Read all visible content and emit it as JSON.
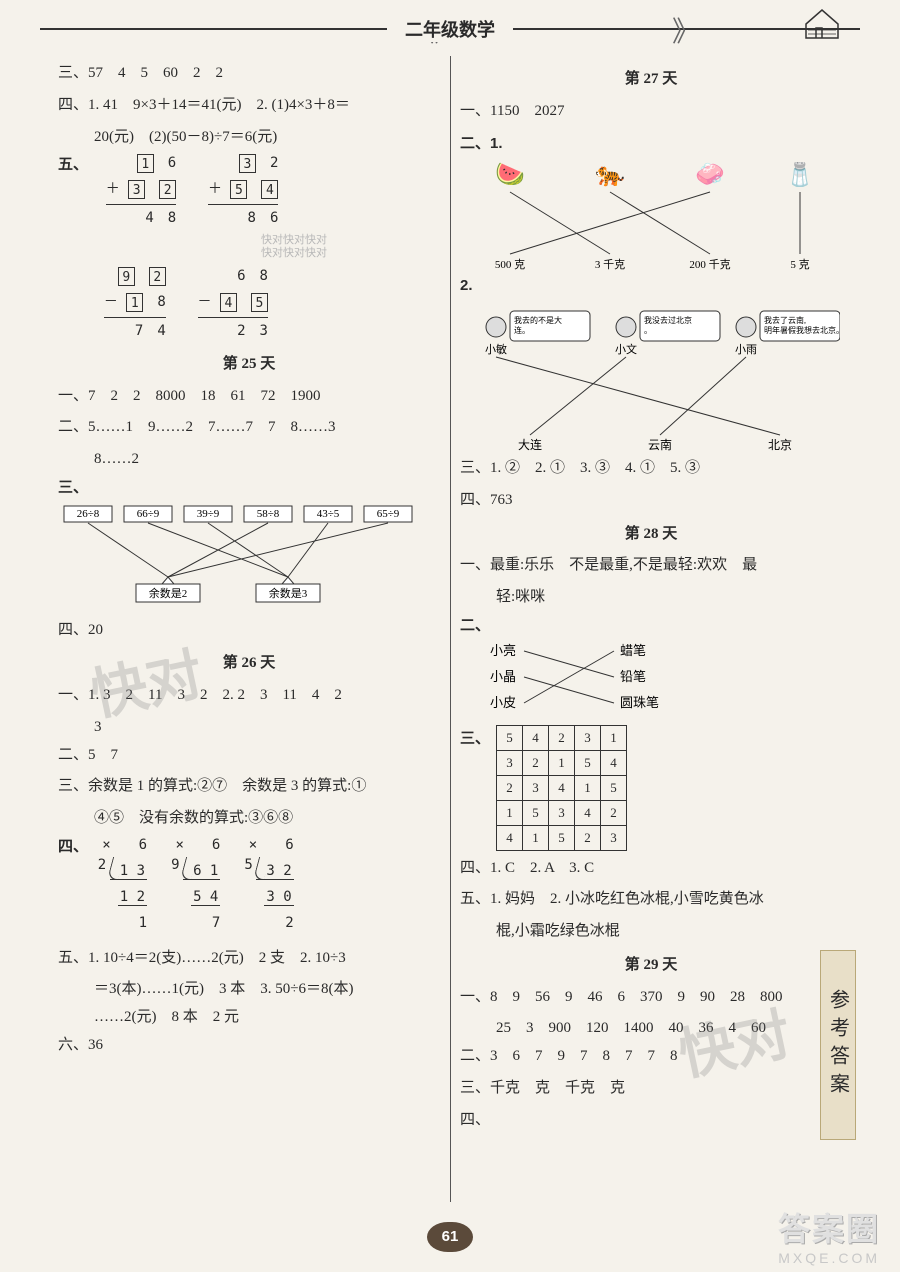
{
  "header": {
    "title": "二年级数学",
    "page_number": "61",
    "side_tab": "参考答案"
  },
  "watermarks": {
    "small": "快对快对快对\n快对快对快对",
    "brand_big": "答案圈",
    "brand_small": "MXQE.COM"
  },
  "left": {
    "pre": {
      "san": "三、57　4　5　60　2　2",
      "si_line1": "四、1. 41　9×3＋14＝41(元)　2. (1)4×3＋8＝",
      "si_line2": "20(元)　(2)(50－8)÷7＝6(元)",
      "wu_label": "五、",
      "box_add1": {
        "a": [
          "1",
          "6"
        ],
        "b": [
          "3",
          "2"
        ],
        "sum": "4　8",
        "op": "＋"
      },
      "box_add2": {
        "a": [
          "3",
          "2"
        ],
        "b": [
          "5",
          "4"
        ],
        "sum": "8　6",
        "op": "＋"
      },
      "box_sub1": {
        "a": [
          "9",
          "2"
        ],
        "b": [
          "1",
          "8"
        ],
        "sum": "7　4",
        "op": "－"
      },
      "box_sub2": {
        "a": [
          "6",
          "8"
        ],
        "b": [
          "4",
          "5"
        ],
        "sum": "2　3",
        "op": "－"
      }
    },
    "day25": {
      "title": "第 25 天",
      "yi": "一、7　2　2　8000　18　61　72　1900",
      "er_line1": "二、5……1　9……2　7……7　7　8……3",
      "er_line2": "8……2",
      "san_label": "三、",
      "match": {
        "tops": [
          "26÷8",
          "66÷9",
          "39÷9",
          "58÷8",
          "43÷5",
          "65÷9"
        ],
        "dests": [
          "余数是2",
          "余数是3"
        ],
        "edges": [
          [
            0,
            0
          ],
          [
            1,
            1
          ],
          [
            2,
            1
          ],
          [
            3,
            0
          ],
          [
            4,
            1
          ],
          [
            5,
            0
          ]
        ],
        "box_stroke": "#333",
        "line_stroke": "#333"
      },
      "si": "四、20"
    },
    "day26": {
      "title": "第 26 天",
      "yi_line1": "一、1. 3　2　11　3　2　2. 2　3　11　4　2",
      "yi_line2": "3",
      "er": "二、5　7",
      "san_line1": "三、余数是 1 的算式:②⑦　余数是 3 的算式:①",
      "san_line2": "④⑤　没有余数的算式:③⑥⑧",
      "si_label": "四、",
      "divs": [
        {
          "divisor": "2",
          "dividend": "1 3",
          "quot": "6",
          "p1": "1 2",
          "rem": "1",
          "mark": "×"
        },
        {
          "divisor": "9",
          "dividend": "6 1",
          "quot": "6",
          "p1": "5 4",
          "rem": "7",
          "mark": "×"
        },
        {
          "divisor": "5",
          "dividend": "3 2",
          "quot": "6",
          "p1": "3 0",
          "rem": "2",
          "mark": "×"
        }
      ],
      "wu_line1": "五、1. 10÷4＝2(支)……2(元)　2 支　2. 10÷3",
      "wu_line2": "＝3(本)……1(元)　3 本　3. 50÷6＝8(本)",
      "wu_line3": "……2(元)　8 本　2 元",
      "liu": "六、36"
    }
  },
  "right": {
    "day27": {
      "title": "第 27 天",
      "yi": "一、1150　2027",
      "er_label": "二、1.",
      "match1": {
        "tops": [
          "🍉",
          "🐅",
          "🧼",
          "🧂"
        ],
        "labels": [
          "500 克",
          "3 千克",
          "200 千克",
          "5 克"
        ],
        "edges": [
          [
            0,
            1
          ],
          [
            1,
            2
          ],
          [
            2,
            0
          ],
          [
            3,
            3
          ]
        ],
        "line_stroke": "#333",
        "label_fontsize": 11
      },
      "match2_label": "2.",
      "match2": {
        "people": [
          "小敏",
          "小文",
          "小雨"
        ],
        "bubbles": [
          "我去的不是大连。",
          "我没去过北京。",
          "我去了云南,明年暑假我想去北京。"
        ],
        "cities": [
          "大连",
          "云南",
          "北京"
        ],
        "edges": [
          [
            0,
            2
          ],
          [
            1,
            0
          ],
          [
            2,
            1
          ]
        ],
        "line_stroke": "#333"
      },
      "san": "三、1. ②　2. ①　3. ③　4. ①　5. ③",
      "si": "四、763"
    },
    "day28": {
      "title": "第 28 天",
      "yi_line1": "一、最重:乐乐　不是最重,不是最轻:欢欢　最",
      "yi_line2": "轻:咪咪",
      "er_label": "二、",
      "er_match": {
        "left": [
          "小亮",
          "小晶",
          "小皮"
        ],
        "right": [
          "蜡笔",
          "铅笔",
          "圆珠笔"
        ],
        "edges": [
          [
            0,
            1
          ],
          [
            1,
            2
          ],
          [
            2,
            0
          ]
        ],
        "line_stroke": "#333"
      },
      "san_label": "三、",
      "grid": [
        [
          "5",
          "4",
          "2",
          "3",
          "1"
        ],
        [
          "3",
          "2",
          "1",
          "5",
          "4"
        ],
        [
          "2",
          "3",
          "4",
          "1",
          "5"
        ],
        [
          "1",
          "5",
          "3",
          "4",
          "2"
        ],
        [
          "4",
          "1",
          "5",
          "2",
          "3"
        ]
      ],
      "si": "四、1. C　2. A　3. C",
      "wu_line1": "五、1. 妈妈　2. 小冰吃红色冰棍,小雪吃黄色冰",
      "wu_line2": "棍,小霜吃绿色冰棍"
    },
    "day29": {
      "title": "第 29 天",
      "yi_line1": "一、8　9　56　9　46　6　370　9　90　28　800",
      "yi_line2": "25　3　900　120　1400　40　36　4　60",
      "er": "二、3　6　7　9　7　8　7　7　8",
      "san": "三、千克　克　千克　克",
      "si": "四、"
    }
  }
}
